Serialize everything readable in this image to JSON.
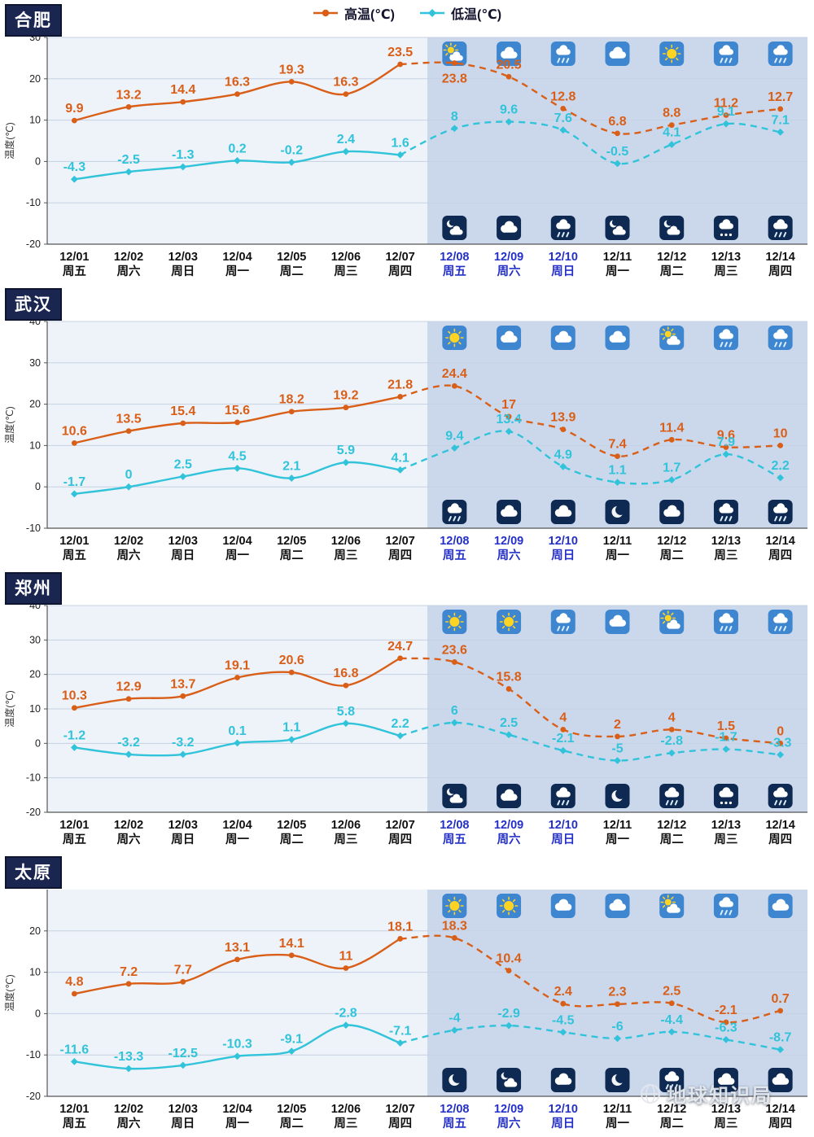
{
  "legend": {
    "high_label": "高温(℃)",
    "low_label": "低温(℃)"
  },
  "watermark": {
    "text": "地球知识局"
  },
  "colors": {
    "high": "#d95f18",
    "low": "#31c3da",
    "past_bg": "#eef3fa",
    "forecast_bg": "#cbd8ec",
    "grid": "#c6d1e2",
    "axis": "#555555",
    "date_highlight": "#2430c8",
    "date_normal": "#111111",
    "day_icon_bg": "#3e87d0",
    "night_icon_bg": "#0e2a52",
    "badge_bg": "#1a2550",
    "sun": "#ffd321"
  },
  "chart_data": [
    {
      "type": "line",
      "city": "合肥",
      "ylabel": "温度(℃)",
      "ylim": [
        -20,
        30
      ],
      "yticks": [
        30,
        20,
        10,
        0,
        -10,
        -20
      ],
      "forecast_start": 7,
      "highlighted_dates": [
        7,
        8,
        9
      ],
      "categories": [
        "12/01",
        "12/02",
        "12/03",
        "12/04",
        "12/05",
        "12/06",
        "12/07",
        "12/08",
        "12/09",
        "12/10",
        "12/11",
        "12/12",
        "12/13",
        "12/14"
      ],
      "weekdays": [
        "周五",
        "周六",
        "周日",
        "周一",
        "周二",
        "周三",
        "周四",
        "周五",
        "周六",
        "周日",
        "周一",
        "周二",
        "周三",
        "周四"
      ],
      "series": [
        {
          "name": "高温(℃)",
          "role": "high",
          "marker": "circle",
          "values": [
            9.9,
            13.2,
            14.4,
            16.3,
            19.3,
            16.3,
            23.5,
            23.8,
            20.5,
            12.8,
            6.8,
            8.8,
            11.2,
            12.7
          ]
        },
        {
          "name": "低温(℃)",
          "role": "low",
          "marker": "diamond",
          "values": [
            -4.3,
            -2.5,
            -1.3,
            0.2,
            -0.2,
            2.4,
            1.6,
            8,
            9.6,
            7.6,
            -0.5,
            4.1,
            9.1,
            7.1
          ]
        }
      ],
      "day_icons": [
        "partly-sunny",
        "cloudy",
        "rain",
        "cloudy",
        "sunny",
        "rain",
        "rain"
      ],
      "night_icons": [
        "cloud-moon",
        "cloudy",
        "rain",
        "cloud-moon",
        "cloud-moon",
        "snow",
        "rain"
      ]
    },
    {
      "type": "line",
      "city": "武汉",
      "ylabel": "温度(℃)",
      "ylim": [
        -10,
        40
      ],
      "yticks": [
        40,
        30,
        20,
        10,
        0,
        -10
      ],
      "forecast_start": 7,
      "highlighted_dates": [
        7,
        8,
        9
      ],
      "categories": [
        "12/01",
        "12/02",
        "12/03",
        "12/04",
        "12/05",
        "12/06",
        "12/07",
        "12/08",
        "12/09",
        "12/10",
        "12/11",
        "12/12",
        "12/13",
        "12/14"
      ],
      "weekdays": [
        "周五",
        "周六",
        "周日",
        "周一",
        "周二",
        "周三",
        "周四",
        "周五",
        "周六",
        "周日",
        "周一",
        "周二",
        "周三",
        "周四"
      ],
      "series": [
        {
          "name": "高温(℃)",
          "role": "high",
          "marker": "circle",
          "values": [
            10.6,
            13.5,
            15.4,
            15.6,
            18.2,
            19.2,
            21.8,
            24.4,
            17,
            13.9,
            7.4,
            11.4,
            9.6,
            10
          ]
        },
        {
          "name": "低温(℃)",
          "role": "low",
          "marker": "diamond",
          "values": [
            -1.7,
            0,
            2.5,
            4.5,
            2.1,
            5.9,
            4.1,
            9.4,
            13.4,
            4.9,
            1.1,
            1.7,
            7.9,
            2.2
          ]
        }
      ],
      "day_icons": [
        "sunny",
        "cloudy",
        "cloudy",
        "cloudy",
        "partly-sunny",
        "rain",
        "rain"
      ],
      "night_icons": [
        "rain",
        "cloudy",
        "cloudy",
        "moon",
        "cloudy",
        "rain",
        "rain"
      ]
    },
    {
      "type": "line",
      "city": "郑州",
      "ylabel": "温度(℃)",
      "ylim": [
        -20,
        40
      ],
      "yticks": [
        40,
        30,
        20,
        10,
        0,
        -10,
        -20
      ],
      "forecast_start": 7,
      "highlighted_dates": [
        7,
        8,
        9
      ],
      "categories": [
        "12/01",
        "12/02",
        "12/03",
        "12/04",
        "12/05",
        "12/06",
        "12/07",
        "12/08",
        "12/09",
        "12/10",
        "12/11",
        "12/12",
        "12/13",
        "12/14"
      ],
      "weekdays": [
        "周五",
        "周六",
        "周日",
        "周一",
        "周二",
        "周三",
        "周四",
        "周五",
        "周六",
        "周日",
        "周一",
        "周二",
        "周三",
        "周四"
      ],
      "series": [
        {
          "name": "高温(℃)",
          "role": "high",
          "marker": "circle",
          "values": [
            10.3,
            12.9,
            13.7,
            19.1,
            20.6,
            16.8,
            24.7,
            23.6,
            15.8,
            4,
            2,
            4,
            1.5,
            0
          ]
        },
        {
          "name": "低温(℃)",
          "role": "low",
          "marker": "diamond",
          "values": [
            -1.2,
            -3.2,
            -3.2,
            0.1,
            1.1,
            5.8,
            2.2,
            6,
            2.5,
            -2.1,
            -5,
            -2.8,
            -1.7,
            -3.3
          ]
        }
      ],
      "day_icons": [
        "sunny",
        "sunny",
        "rain",
        "cloudy",
        "partly-sunny",
        "rain",
        "rain"
      ],
      "night_icons": [
        "cloud-moon",
        "cloudy",
        "rain",
        "moon",
        "rain",
        "snow",
        "rain"
      ]
    },
    {
      "type": "line",
      "city": "太原",
      "ylabel": "温度(℃)",
      "ylim": [
        -20,
        30
      ],
      "yticks": [
        20,
        10,
        0,
        -10,
        -20
      ],
      "forecast_start": 7,
      "highlighted_dates": [
        7,
        8,
        9
      ],
      "categories": [
        "12/01",
        "12/02",
        "12/03",
        "12/04",
        "12/05",
        "12/06",
        "12/07",
        "12/08",
        "12/09",
        "12/10",
        "12/11",
        "12/12",
        "12/13",
        "12/14"
      ],
      "weekdays": [
        "周五",
        "周六",
        "周日",
        "周一",
        "周二",
        "周三",
        "周四",
        "周五",
        "周六",
        "周日",
        "周一",
        "周二",
        "周三",
        "周四"
      ],
      "series": [
        {
          "name": "高温(℃)",
          "role": "high",
          "marker": "circle",
          "values": [
            4.8,
            7.2,
            7.7,
            13.1,
            14.1,
            11,
            18.1,
            18.3,
            10.4,
            2.4,
            2.3,
            2.5,
            -2.1,
            0.7
          ]
        },
        {
          "name": "低温(℃)",
          "role": "low",
          "marker": "diamond",
          "values": [
            -11.6,
            -13.3,
            -12.5,
            -10.3,
            -9.1,
            -2.8,
            -7.1,
            -4,
            -2.9,
            -4.5,
            -6,
            -4.4,
            -6.3,
            -8.7
          ]
        }
      ],
      "day_icons": [
        "sunny",
        "sunny",
        "cloudy",
        "cloudy",
        "partly-sunny",
        "rain",
        "cloudy"
      ],
      "night_icons": [
        "moon",
        "cloud-moon",
        "cloudy",
        "moon",
        "rain",
        "cloudy",
        "cloudy"
      ]
    }
  ]
}
